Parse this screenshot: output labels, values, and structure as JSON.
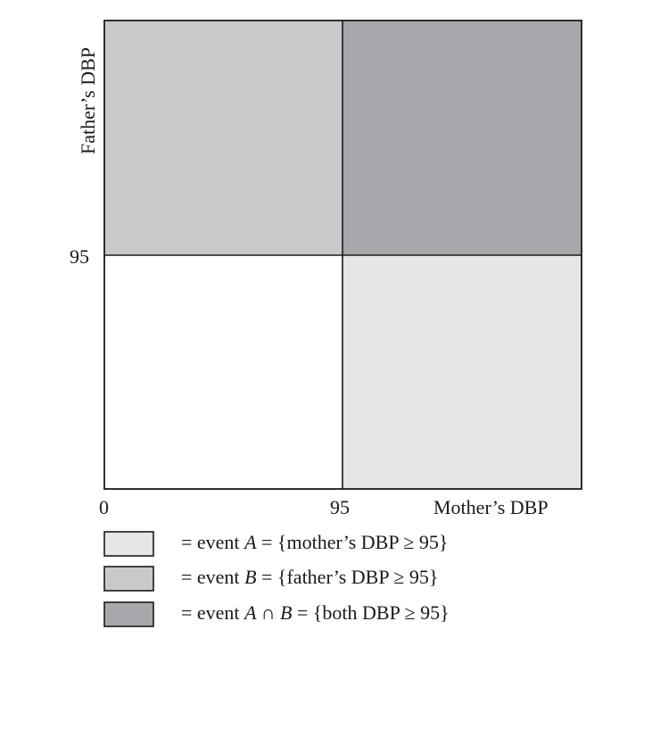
{
  "axes": {
    "x_label": "Mother’s DBP",
    "y_label": "Father’s DBP",
    "x_ticks": [
      "0",
      "95"
    ],
    "y_ticks": [
      "95"
    ]
  },
  "regions": {
    "mother_only": {
      "color": "#e6e6e6"
    },
    "father_only": {
      "color": "#c8c9cb"
    },
    "both": {
      "color": "#a7a8ab"
    },
    "neither": {
      "color": "#ffffff"
    }
  },
  "legend": [
    {
      "color": "#e6e6e6",
      "prefix": "= event ",
      "event": "A",
      "suffix": " = {mother’s DBP ≥ 95}"
    },
    {
      "color": "#c8c9cb",
      "prefix": "= event ",
      "event": "B",
      "suffix": " = {father’s DBP ≥ 95}"
    },
    {
      "color": "#a7a8ab",
      "prefix": "= event ",
      "event": "A ∩ B",
      "suffix": " = {both DBP ≥ 95}"
    }
  ]
}
